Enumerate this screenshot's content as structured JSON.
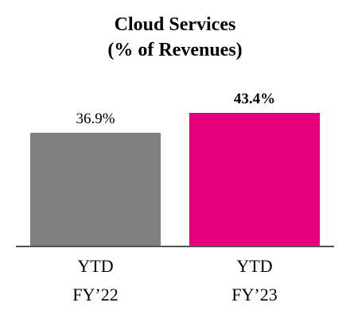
{
  "chart_data": {
    "type": "bar",
    "title_lines": [
      "Cloud Services",
      "(% of Revenues)"
    ],
    "categories": [
      [
        "YTD",
        "FY’22"
      ],
      [
        "YTD",
        "FY’23"
      ]
    ],
    "values": [
      36.9,
      43.4
    ],
    "value_labels": [
      "36.9%",
      "43.4%"
    ],
    "value_label_bold": [
      false,
      true
    ],
    "colors": [
      "#808080",
      "#e5007e"
    ],
    "axis_color": "#555555",
    "ylim": [
      0,
      60
    ],
    "grid": false,
    "legend": "none"
  }
}
